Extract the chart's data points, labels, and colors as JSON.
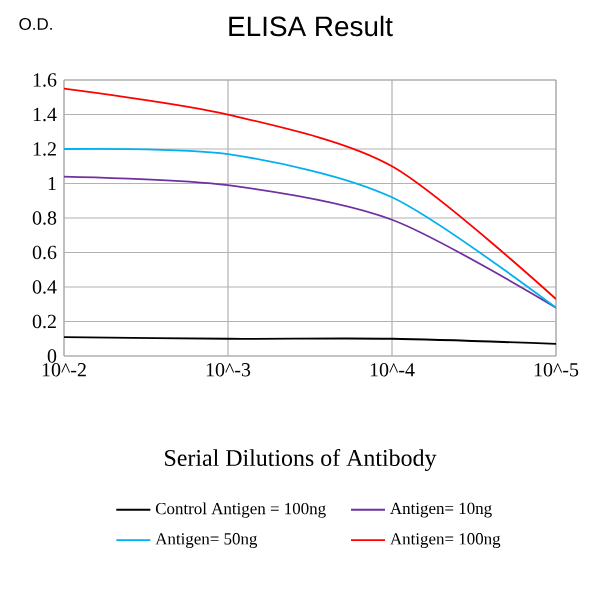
{
  "chart_data": {
    "type": "line",
    "title": "ELISA Result",
    "ylabel": "O.D.",
    "xlabel": "Serial Dilutions of Antibody",
    "categories": [
      "10^-2",
      "10^-3",
      "10^-4",
      "10^-5"
    ],
    "series": [
      {
        "name": "Control Antigen = 100ng",
        "color": "#000000",
        "values": [
          0.11,
          0.1,
          0.1,
          0.07
        ]
      },
      {
        "name": "Antigen= 10ng",
        "color": "#7030a0",
        "values": [
          1.04,
          0.99,
          0.79,
          0.28
        ]
      },
      {
        "name": "Antigen= 50ng",
        "color": "#00b0f0",
        "values": [
          1.2,
          1.17,
          0.92,
          0.28
        ]
      },
      {
        "name": "Antigen= 100ng",
        "color": "#ff0000",
        "values": [
          1.55,
          1.4,
          1.1,
          0.33
        ]
      }
    ],
    "ylim": [
      0,
      1.6
    ],
    "yticks": [
      0,
      0.2,
      0.4,
      0.6,
      0.8,
      1,
      1.2,
      1.4,
      1.6
    ],
    "grid": true,
    "legend": "bottom",
    "marker": "none",
    "line_style": "solid"
  }
}
